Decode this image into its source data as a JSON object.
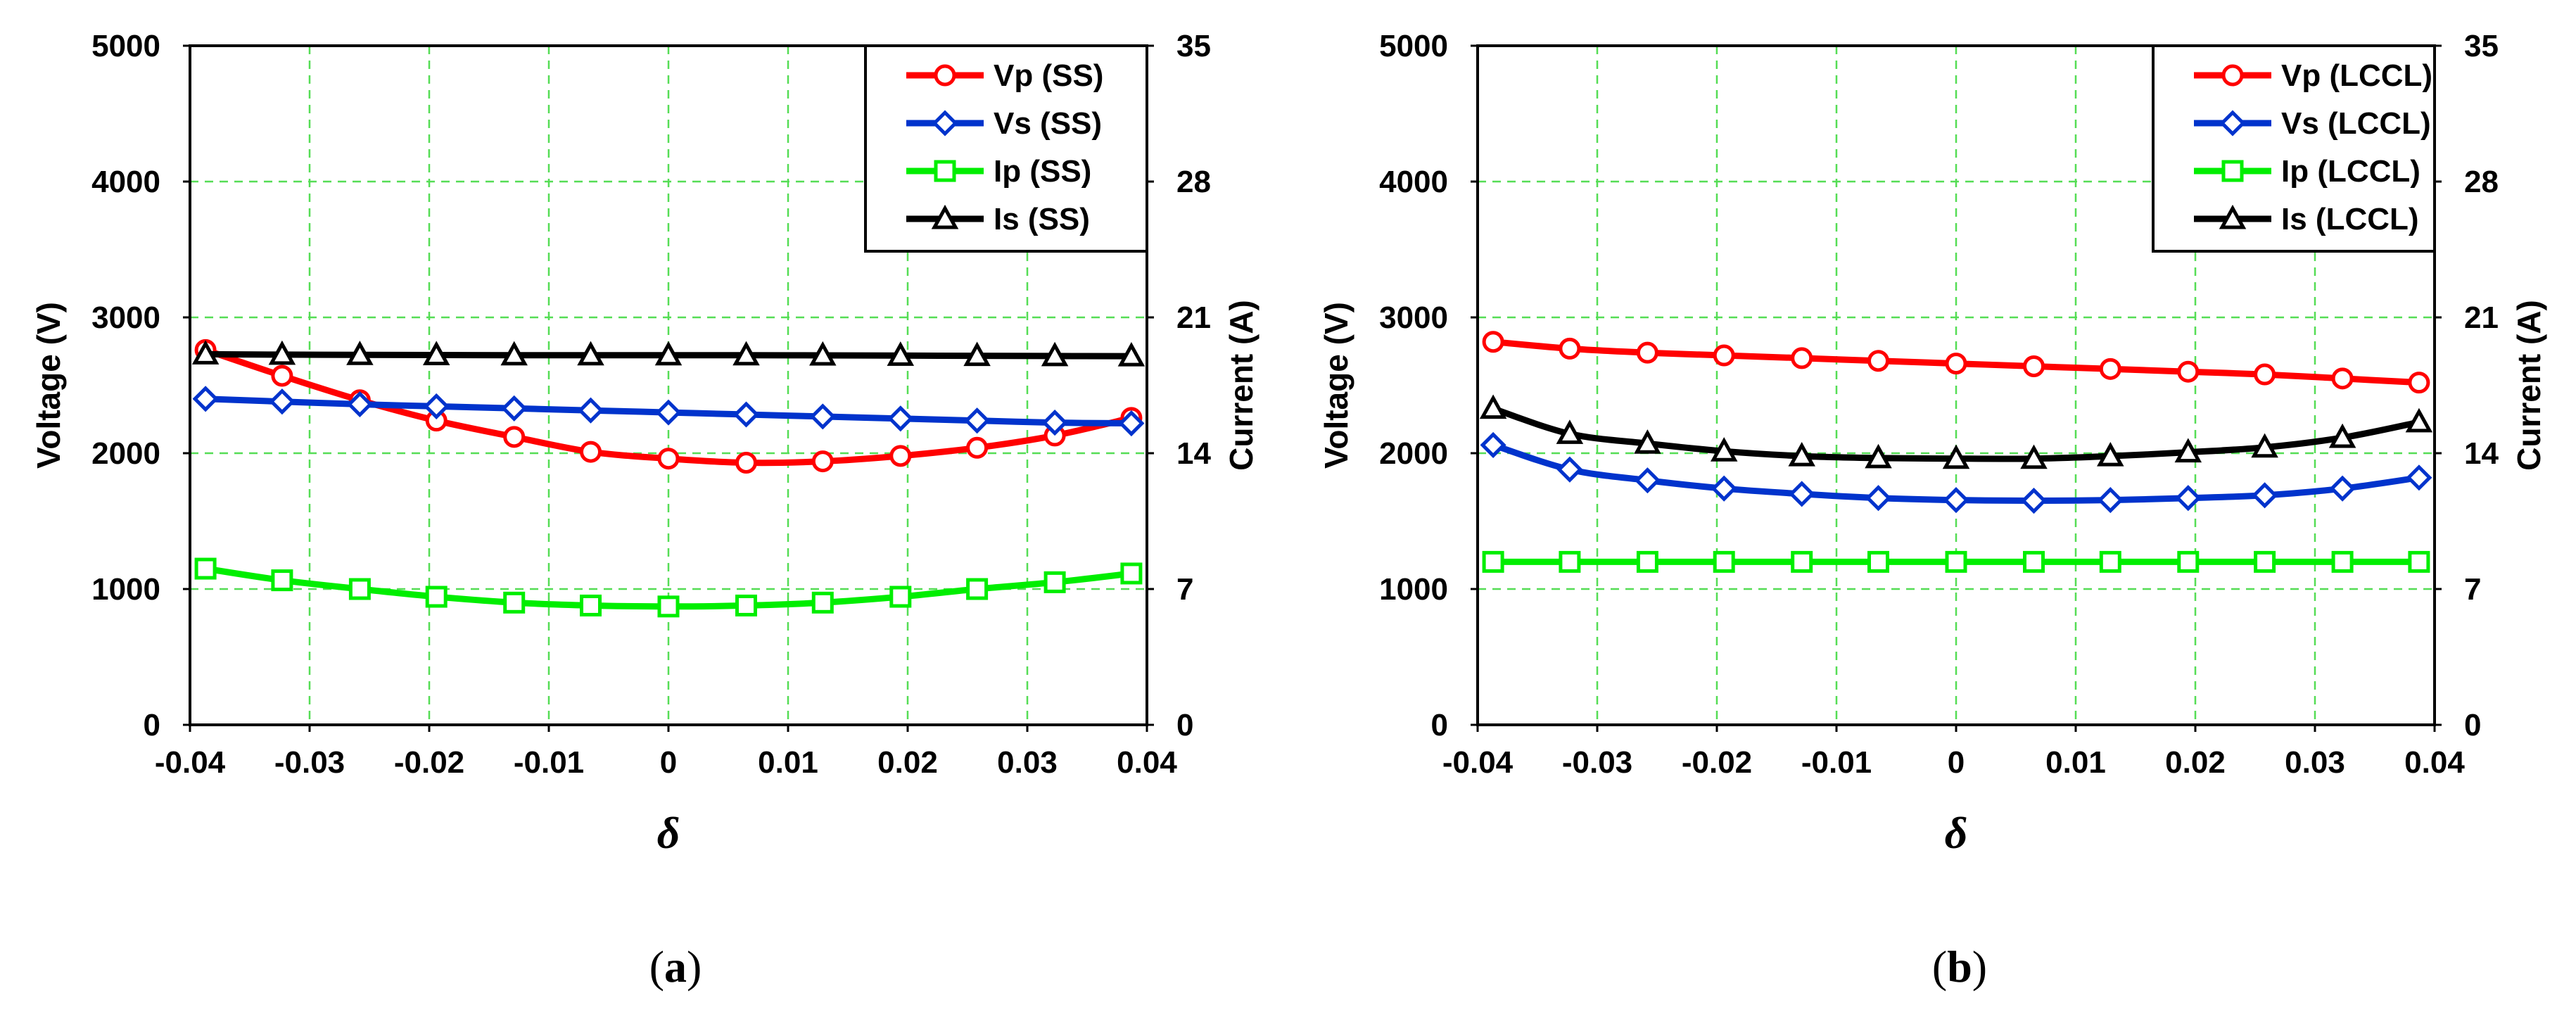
{
  "chart_data": [
    {
      "type": "line",
      "caption_open": "(",
      "caption_letter": "a",
      "caption_close": ")",
      "xlabel": "δ",
      "ylabel": "Voltage (V)",
      "y2label": "Current (A)",
      "xlim": [
        -0.04,
        0.04
      ],
      "ylim": [
        0,
        5000
      ],
      "y2lim": [
        0,
        35
      ],
      "xticks": [
        -0.04,
        -0.03,
        -0.02,
        -0.01,
        0,
        0.01,
        0.02,
        0.03,
        0.04
      ],
      "xtick_labels": [
        "-0.04",
        "-0.03",
        "-0.02",
        "-0.01",
        "0",
        "0.01",
        "0.02",
        "0.03",
        "0.04"
      ],
      "yticks": [
        0,
        1000,
        2000,
        3000,
        4000,
        5000
      ],
      "ytick_labels": [
        "0",
        "1000",
        "2000",
        "3000",
        "4000",
        "5000"
      ],
      "y2ticks": [
        0,
        7,
        14,
        21,
        28,
        35
      ],
      "y2tick_labels": [
        "0",
        "7",
        "14",
        "21",
        "28",
        "35"
      ],
      "grid": true,
      "legend_position": "top-right",
      "x": [
        -0.0387,
        -0.0323,
        -0.0258,
        -0.0194,
        -0.0129,
        -0.0065,
        0,
        0.0065,
        0.0129,
        0.0194,
        0.0258,
        0.0323,
        0.0387
      ],
      "series": [
        {
          "name": "Vp (SS)",
          "axis": "left",
          "color": "#ff0000",
          "marker": "circle",
          "values": [
            2760,
            2570,
            2390,
            2240,
            2120,
            2010,
            1960,
            1930,
            1940,
            1980,
            2040,
            2130,
            2260
          ]
        },
        {
          "name": "Vs (SS)",
          "axis": "left",
          "color": "#0033cc",
          "marker": "diamond",
          "values": [
            2400,
            2380,
            2360,
            2345,
            2330,
            2315,
            2300,
            2285,
            2270,
            2255,
            2240,
            2225,
            2220
          ]
        },
        {
          "name": "Ip (SS)",
          "axis": "right",
          "color": "#00ee00",
          "marker": "square",
          "values": [
            8.05,
            7.45,
            7.0,
            6.6,
            6.3,
            6.15,
            6.1,
            6.15,
            6.3,
            6.6,
            7.0,
            7.35,
            7.8
          ]
        },
        {
          "name": "Is (SS)",
          "axis": "right",
          "color": "#000000",
          "marker": "triangle",
          "values": [
            19.1,
            19.08,
            19.07,
            19.06,
            19.05,
            19.05,
            19.05,
            19.05,
            19.04,
            19.03,
            19.02,
            19.01,
            19.0
          ]
        }
      ]
    },
    {
      "type": "line",
      "caption_open": "(",
      "caption_letter": "b",
      "caption_close": ")",
      "xlabel": "δ",
      "ylabel": "Voltage (V)",
      "y2label": "Current (A)",
      "xlim": [
        -0.04,
        0.04
      ],
      "ylim": [
        0,
        5000
      ],
      "y2lim": [
        0,
        35
      ],
      "xticks": [
        -0.04,
        -0.03,
        -0.02,
        -0.01,
        0,
        0.01,
        0.02,
        0.03,
        0.04
      ],
      "xtick_labels": [
        "-0.04",
        "-0.03",
        "-0.02",
        "-0.01",
        "0",
        "0.01",
        "0.02",
        "0.03",
        "0.04"
      ],
      "yticks": [
        0,
        1000,
        2000,
        3000,
        4000,
        5000
      ],
      "ytick_labels": [
        "0",
        "1000",
        "2000",
        "3000",
        "4000",
        "5000"
      ],
      "y2ticks": [
        0,
        7,
        14,
        21,
        28,
        35
      ],
      "y2tick_labels": [
        "0",
        "7",
        "14",
        "21",
        "28",
        "35"
      ],
      "grid": true,
      "legend_position": "top-right",
      "x": [
        -0.0387,
        -0.0323,
        -0.0258,
        -0.0194,
        -0.0129,
        -0.0065,
        0,
        0.0065,
        0.0129,
        0.0194,
        0.0258,
        0.0323,
        0.0387
      ],
      "series": [
        {
          "name": "Vp (LCCL)",
          "axis": "left",
          "color": "#ff0000",
          "marker": "circle",
          "values": [
            2820,
            2770,
            2740,
            2720,
            2700,
            2680,
            2660,
            2640,
            2620,
            2600,
            2580,
            2550,
            2520
          ]
        },
        {
          "name": "Vs (LCCL)",
          "axis": "left",
          "color": "#0033cc",
          "marker": "diamond",
          "values": [
            2060,
            1880,
            1800,
            1740,
            1700,
            1670,
            1655,
            1650,
            1655,
            1670,
            1690,
            1740,
            1820
          ]
        },
        {
          "name": "Ip (LCCL)",
          "axis": "right",
          "color": "#00ee00",
          "marker": "square",
          "values": [
            8.4,
            8.4,
            8.4,
            8.4,
            8.4,
            8.4,
            8.4,
            8.4,
            8.4,
            8.4,
            8.4,
            8.4,
            8.4
          ]
        },
        {
          "name": "Is (LCCL)",
          "axis": "right",
          "color": "#000000",
          "marker": "triangle",
          "values": [
            16.3,
            15.0,
            14.5,
            14.1,
            13.85,
            13.75,
            13.72,
            13.72,
            13.85,
            14.05,
            14.3,
            14.8,
            15.6
          ]
        }
      ]
    }
  ]
}
